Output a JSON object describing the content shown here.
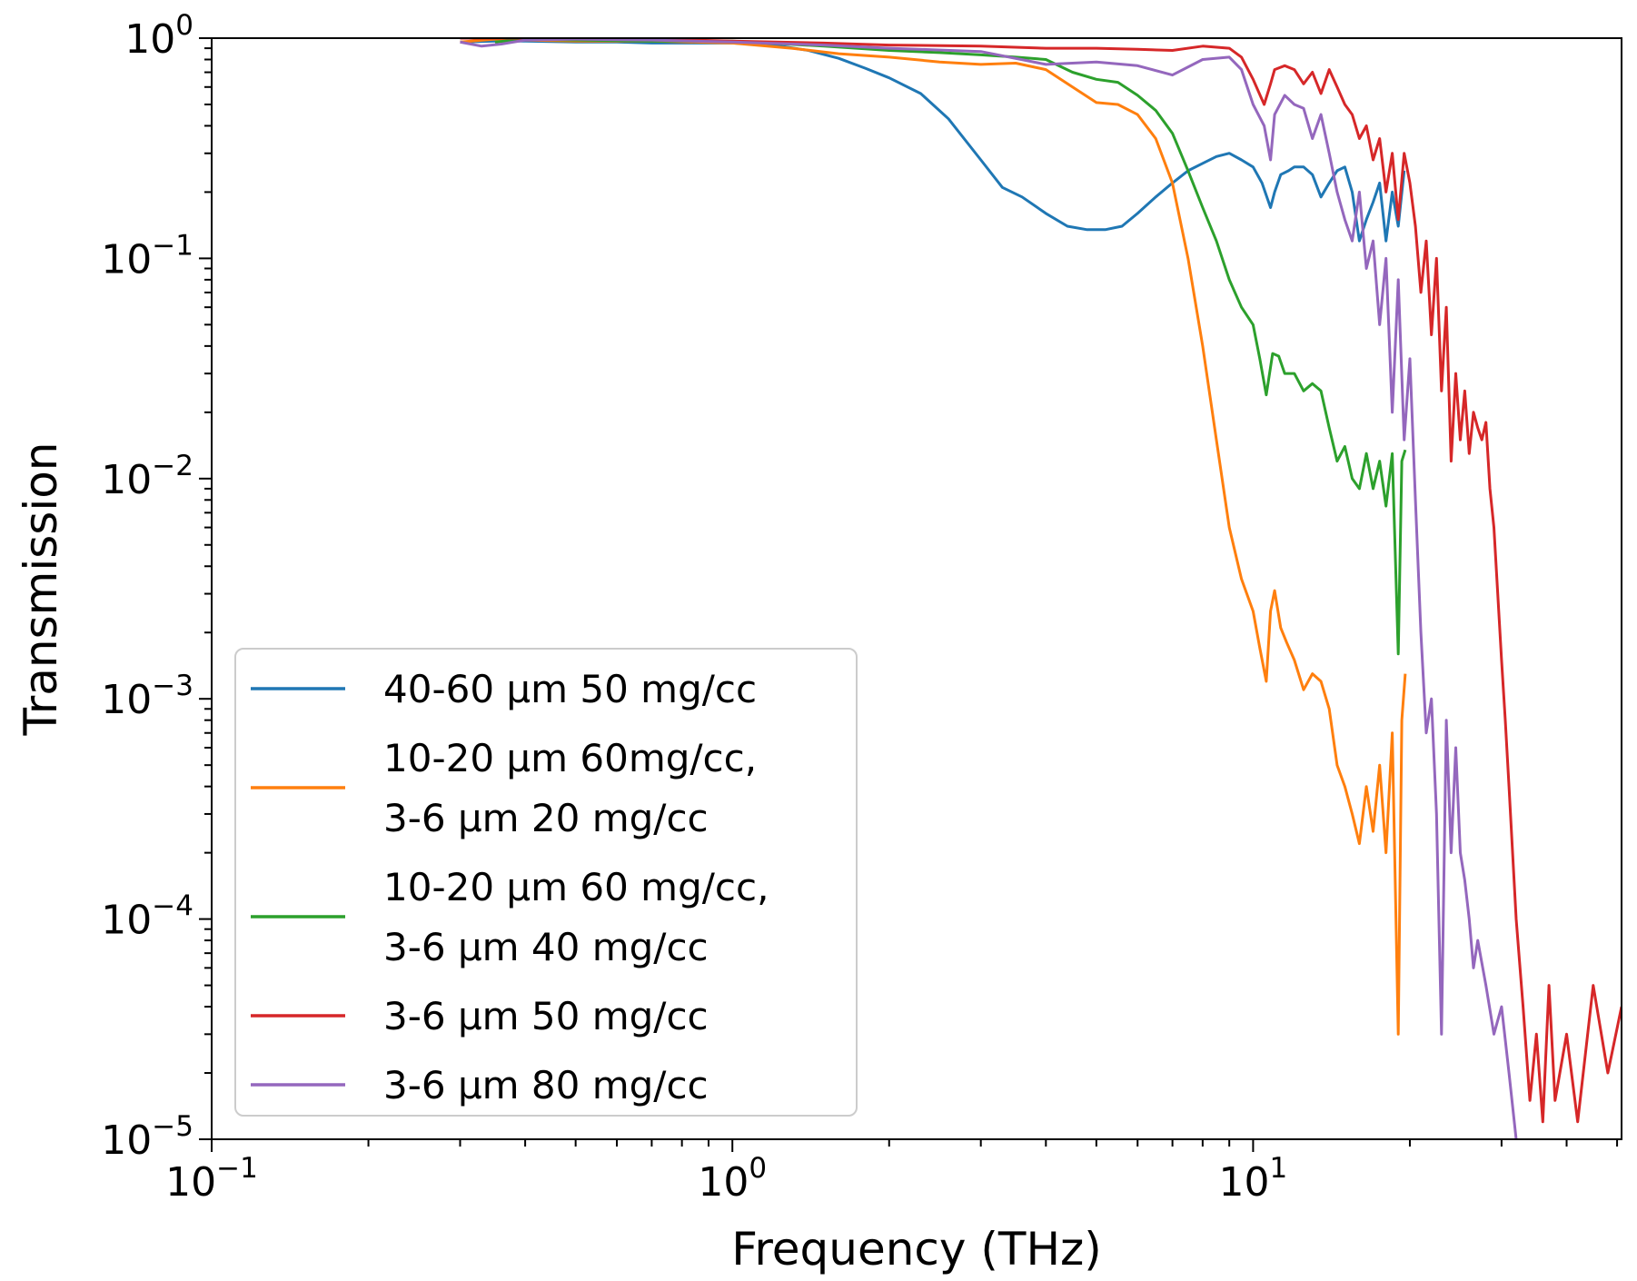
{
  "chart_data": {
    "type": "line",
    "xlabel": "Frequency (THz)",
    "ylabel": "Transmission",
    "xscale": "log",
    "yscale": "log",
    "xlim": [
      0.1,
      51
    ],
    "ylim": [
      1e-05,
      1
    ],
    "grid": false,
    "legend_position": "lower-left",
    "x_ticks": [
      {
        "value": 0.1,
        "base": "10",
        "exp": "−1"
      },
      {
        "value": 1,
        "base": "10",
        "exp": "0"
      },
      {
        "value": 10,
        "base": "10",
        "exp": "1"
      }
    ],
    "y_ticks": [
      {
        "value": 1,
        "base": "10",
        "exp": "0"
      },
      {
        "value": 0.1,
        "base": "10",
        "exp": "−1"
      },
      {
        "value": 0.01,
        "base": "10",
        "exp": "−2"
      },
      {
        "value": 0.001,
        "base": "10",
        "exp": "−3"
      },
      {
        "value": 0.0001,
        "base": "10",
        "exp": "−4"
      },
      {
        "value": 1e-05,
        "base": "10",
        "exp": "−5"
      }
    ],
    "series": [
      {
        "name": "40-60 μm 50 mg/cc",
        "legend_lines": [
          "40-60 μm 50 mg/cc"
        ],
        "color": "#1f77b4",
        "x": [
          0.3,
          0.35,
          0.4,
          0.5,
          0.6,
          0.7,
          0.8,
          0.9,
          1.0,
          1.2,
          1.4,
          1.6,
          1.8,
          2.0,
          2.3,
          2.6,
          3.0,
          3.3,
          3.6,
          4.0,
          4.4,
          4.8,
          5.2,
          5.6,
          6.0,
          6.5,
          7.0,
          7.5,
          8.0,
          8.5,
          9.0,
          9.5,
          10.0,
          10.4,
          10.8,
          11.0,
          11.3,
          11.7,
          12.0,
          12.5,
          13.0,
          13.5,
          14.0,
          14.5,
          15.0,
          15.5,
          16.0,
          16.5,
          17.0,
          17.5,
          18.0,
          18.5,
          19.0,
          19.5
        ],
        "y": [
          0.96,
          0.97,
          0.97,
          0.96,
          0.96,
          0.95,
          0.95,
          0.95,
          0.95,
          0.93,
          0.88,
          0.81,
          0.73,
          0.66,
          0.56,
          0.43,
          0.28,
          0.21,
          0.19,
          0.16,
          0.14,
          0.135,
          0.135,
          0.14,
          0.16,
          0.19,
          0.22,
          0.25,
          0.27,
          0.29,
          0.3,
          0.28,
          0.26,
          0.22,
          0.17,
          0.2,
          0.24,
          0.25,
          0.26,
          0.26,
          0.24,
          0.19,
          0.22,
          0.25,
          0.26,
          0.2,
          0.12,
          0.15,
          0.18,
          0.22,
          0.12,
          0.2,
          0.14,
          0.25
        ]
      },
      {
        "name": "10-20 μm 60mg/cc, 3-6 μm 20 mg/cc",
        "legend_lines": [
          "10-20 μm 60mg/cc,",
          "3-6 μm 20 mg/cc"
        ],
        "color": "#ff7f0e",
        "x": [
          0.3,
          0.35,
          0.4,
          0.5,
          0.7,
          1.0,
          1.3,
          1.6,
          2.0,
          2.5,
          3.0,
          3.5,
          4.0,
          4.5,
          5.0,
          5.5,
          6.0,
          6.5,
          7.0,
          7.5,
          8.0,
          8.5,
          9.0,
          9.5,
          10.0,
          10.3,
          10.6,
          10.8,
          11.0,
          11.3,
          11.6,
          12.0,
          12.5,
          13.0,
          13.5,
          14.0,
          14.5,
          15.0,
          15.5,
          16.0,
          16.5,
          17.0,
          17.5,
          18.0,
          18.5,
          19.0,
          19.3,
          19.6
        ],
        "y": [
          0.96,
          0.99,
          0.98,
          0.97,
          0.97,
          0.95,
          0.9,
          0.85,
          0.82,
          0.78,
          0.76,
          0.77,
          0.72,
          0.6,
          0.51,
          0.5,
          0.45,
          0.35,
          0.22,
          0.1,
          0.04,
          0.015,
          0.006,
          0.0035,
          0.0025,
          0.0017,
          0.0012,
          0.0025,
          0.0031,
          0.0021,
          0.0018,
          0.0015,
          0.0011,
          0.0013,
          0.0012,
          0.0009,
          0.0005,
          0.0004,
          0.0003,
          0.00022,
          0.0004,
          0.00025,
          0.0005,
          0.0002,
          0.0007,
          3e-05,
          0.0008,
          0.0013
        ]
      },
      {
        "name": "10-20 μm 60 mg/cc, 3-6 μm 40 mg/cc",
        "legend_lines": [
          "10-20 μm 60 mg/cc,",
          "3-6 μm 40 mg/cc"
        ],
        "color": "#2ca02c",
        "x": [
          0.35,
          0.4,
          0.5,
          0.7,
          1.0,
          1.5,
          2.0,
          2.5,
          3.0,
          3.5,
          4.0,
          4.5,
          5.0,
          5.5,
          6.0,
          6.5,
          7.0,
          7.5,
          8.0,
          8.5,
          9.0,
          9.5,
          10.0,
          10.3,
          10.6,
          10.9,
          11.2,
          11.5,
          12.0,
          12.5,
          13.0,
          13.5,
          14.0,
          14.5,
          15.0,
          15.5,
          16.0,
          16.5,
          17.0,
          17.5,
          18.0,
          18.5,
          19.0,
          19.3,
          19.6
        ],
        "y": [
          0.96,
          0.99,
          0.98,
          0.97,
          0.97,
          0.92,
          0.88,
          0.86,
          0.84,
          0.82,
          0.8,
          0.7,
          0.65,
          0.63,
          0.55,
          0.47,
          0.37,
          0.25,
          0.17,
          0.12,
          0.08,
          0.06,
          0.05,
          0.035,
          0.024,
          0.037,
          0.036,
          0.03,
          0.03,
          0.025,
          0.027,
          0.025,
          0.017,
          0.012,
          0.014,
          0.01,
          0.009,
          0.013,
          0.009,
          0.012,
          0.0075,
          0.013,
          0.0016,
          0.012,
          0.0135
        ]
      },
      {
        "name": "3-6 μm 50 mg/cc",
        "legend_lines": [
          "3-6 μm 50 mg/cc"
        ],
        "color": "#d62728",
        "x": [
          0.3,
          0.4,
          0.5,
          0.7,
          1.0,
          1.5,
          2.0,
          3.0,
          4.0,
          5.0,
          6.0,
          7.0,
          8.0,
          9.0,
          9.5,
          10.0,
          10.5,
          10.8,
          11.0,
          11.5,
          12.0,
          12.5,
          13.0,
          13.5,
          14.0,
          14.5,
          15.0,
          15.5,
          16.0,
          16.5,
          17.0,
          17.5,
          18.0,
          18.5,
          19.0,
          19.5,
          20.0,
          20.5,
          21.0,
          21.5,
          22.0,
          22.5,
          23.0,
          23.5,
          24.0,
          24.5,
          25.0,
          25.5,
          26.0,
          26.5,
          27.0,
          27.5,
          28.0,
          28.5,
          29.0,
          29.5,
          30.0,
          30.5,
          31.0,
          32.0,
          33.0,
          34.0,
          35.0,
          36.0,
          37.0,
          38.0,
          40.0,
          42.0,
          45.0,
          48.0,
          51.0
        ],
        "y": [
          1.0,
          1.0,
          1.0,
          0.99,
          0.97,
          0.95,
          0.93,
          0.92,
          0.9,
          0.9,
          0.89,
          0.88,
          0.92,
          0.9,
          0.82,
          0.65,
          0.5,
          0.62,
          0.72,
          0.75,
          0.72,
          0.62,
          0.7,
          0.56,
          0.72,
          0.6,
          0.5,
          0.45,
          0.35,
          0.4,
          0.28,
          0.35,
          0.2,
          0.3,
          0.15,
          0.3,
          0.22,
          0.14,
          0.07,
          0.12,
          0.045,
          0.1,
          0.025,
          0.06,
          0.012,
          0.03,
          0.015,
          0.025,
          0.013,
          0.02,
          0.017,
          0.015,
          0.018,
          0.009,
          0.006,
          0.003,
          0.0015,
          0.0008,
          0.0004,
          0.0001,
          4e-05,
          1.5e-05,
          3e-05,
          1.2e-05,
          5e-05,
          1.5e-05,
          3e-05,
          1.2e-05,
          5e-05,
          2e-05,
          4e-05
        ]
      },
      {
        "name": "3-6 μm 80 mg/cc",
        "legend_lines": [
          "3-6 μm 80 mg/cc"
        ],
        "color": "#9467bd",
        "x": [
          0.3,
          0.33,
          0.36,
          0.4,
          0.5,
          0.7,
          1.0,
          1.5,
          2.0,
          3.0,
          4.0,
          5.0,
          6.0,
          7.0,
          8.0,
          9.0,
          9.5,
          10.0,
          10.5,
          10.8,
          11.0,
          11.5,
          12.0,
          12.5,
          13.0,
          13.5,
          14.0,
          14.5,
          15.0,
          15.5,
          16.0,
          16.5,
          17.0,
          17.5,
          18.0,
          18.5,
          19.0,
          19.5,
          20.0,
          20.5,
          21.0,
          21.5,
          22.0,
          22.5,
          23.0,
          23.5,
          24.0,
          24.5,
          25.0,
          25.5,
          26.0,
          26.5,
          27.0,
          28.0,
          29.0,
          30.0,
          31.0,
          32.0,
          33.0
        ],
        "y": [
          0.96,
          0.92,
          0.94,
          0.98,
          0.99,
          0.98,
          0.96,
          0.93,
          0.9,
          0.87,
          0.76,
          0.78,
          0.75,
          0.68,
          0.8,
          0.82,
          0.72,
          0.5,
          0.4,
          0.28,
          0.45,
          0.55,
          0.5,
          0.48,
          0.35,
          0.45,
          0.3,
          0.2,
          0.15,
          0.12,
          0.2,
          0.09,
          0.12,
          0.05,
          0.1,
          0.02,
          0.08,
          0.015,
          0.035,
          0.008,
          0.002,
          0.0007,
          0.001,
          0.0003,
          3e-05,
          0.0008,
          0.0002,
          0.0006,
          0.0002,
          0.00015,
          0.0001,
          6e-05,
          8e-05,
          5e-05,
          3e-05,
          4e-05,
          2e-05,
          1e-05,
          8e-06
        ]
      }
    ]
  }
}
